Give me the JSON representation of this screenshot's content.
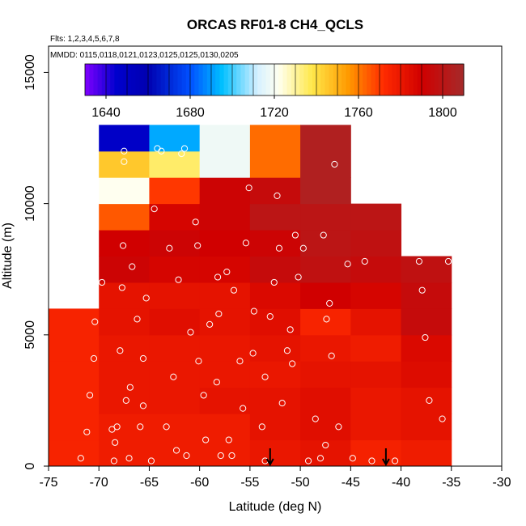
{
  "chart_data": {
    "type": "heatmap",
    "title": "ORCAS RF01-8 CH4_QCLS",
    "flights_note": "Flts: 1,2,3,4,5,6,7,8",
    "dates_note": "MMDD: 0115,0118,0121,0123,0125,0125,0130,0205",
    "xlabel": "Latitude (deg N)",
    "ylabel": "Altitude (m)",
    "xlim": [
      -75,
      -30
    ],
    "ylim": [
      0,
      16000
    ],
    "x_ticks": [
      -75,
      -70,
      -65,
      -60,
      -55,
      -50,
      -45,
      -40,
      -35,
      -30
    ],
    "y_ticks": [
      0,
      5000,
      10000,
      15000
    ],
    "colorbar": {
      "range": [
        1630,
        1810
      ],
      "ticks": [
        1640,
        1680,
        1720,
        1760,
        1800
      ],
      "color_stops": [
        {
          "v": 1630,
          "c": "#7f00ff"
        },
        {
          "v": 1645,
          "c": "#0000cd"
        },
        {
          "v": 1660,
          "c": "#0000b0"
        },
        {
          "v": 1680,
          "c": "#0050ff"
        },
        {
          "v": 1695,
          "c": "#00bfff"
        },
        {
          "v": 1712,
          "c": "#d6f0ff"
        },
        {
          "v": 1722,
          "c": "#fffff0"
        },
        {
          "v": 1738,
          "c": "#ffe84a"
        },
        {
          "v": 1755,
          "c": "#ff9a00"
        },
        {
          "v": 1772,
          "c": "#ff2a00"
        },
        {
          "v": 1790,
          "c": "#d00000"
        },
        {
          "v": 1810,
          "c": "#a52a2a"
        }
      ]
    },
    "cell_width_deg": 5,
    "cell_height_m": 1000,
    "columns": [
      {
        "x0": -75,
        "y0": 0,
        "values": [
          1775,
          1775,
          1775,
          1775,
          1775,
          1775
        ]
      },
      {
        "x0": -70,
        "y0": 0,
        "values": [
          1778,
          1778,
          1780,
          1780,
          1780,
          1782,
          1782,
          1792,
          1790,
          1765,
          1722,
          1745,
          1648
        ]
      },
      {
        "x0": -65,
        "y0": 0,
        "values": [
          1778,
          1778,
          1780,
          1780,
          1780,
          1784,
          1782,
          1788,
          1792,
          1788,
          1770,
          1735,
          1692
        ]
      },
      {
        "x0": -60,
        "y0": 0,
        "values": [
          1778,
          1778,
          1782,
          1780,
          1780,
          1782,
          1782,
          1788,
          1790,
          1792,
          1792,
          1718,
          1718
        ]
      },
      {
        "x0": -55,
        "y0": 0,
        "values": [
          1780,
          1782,
          1782,
          1780,
          1782,
          1784,
          1786,
          1795,
          1792,
          1800,
          1795,
          1762,
          1762
        ]
      },
      {
        "x0": -50,
        "y0": 0,
        "values": [
          1782,
          1784,
          1784,
          1782,
          1780,
          1775,
          1790,
          1798,
          1800,
          1800,
          1805,
          1805,
          1805
        ]
      },
      {
        "x0": -45,
        "y0": 0,
        "values": [
          1776,
          1780,
          1780,
          1782,
          1778,
          1782,
          1788,
          1795,
          1798,
          1800
        ]
      },
      {
        "x0": -40,
        "y0": 0,
        "values": [
          1778,
          1782,
          1782,
          1785,
          1786,
          1795,
          1795,
          1798
        ]
      },
      {
        "x0": -35,
        "y0": 0,
        "values": []
      }
    ],
    "column_-40_extent": [
      -40,
      -35
    ],
    "samples": [
      [
        -71.8,
        300
      ],
      [
        -71.2,
        1300
      ],
      [
        -70.9,
        2700
      ],
      [
        -70.5,
        4100
      ],
      [
        -70.4,
        5500
      ],
      [
        -69.7,
        7000
      ],
      [
        -68.7,
        1400
      ],
      [
        -68.5,
        200
      ],
      [
        -68.4,
        900
      ],
      [
        -68.2,
        1500
      ],
      [
        -67.9,
        4400
      ],
      [
        -67.7,
        6800
      ],
      [
        -67.6,
        8400
      ],
      [
        -67.5,
        11600
      ],
      [
        -67.5,
        12000
      ],
      [
        -67.3,
        2500
      ],
      [
        -67.0,
        300
      ],
      [
        -66.9,
        3000
      ],
      [
        -66.7,
        7600
      ],
      [
        -66.2,
        5600
      ],
      [
        -65.9,
        1500
      ],
      [
        -65.6,
        4100
      ],
      [
        -65.6,
        2300
      ],
      [
        -65.3,
        6400
      ],
      [
        -64.8,
        200
      ],
      [
        -64.5,
        9800
      ],
      [
        -64.2,
        12100
      ],
      [
        -63.8,
        12000
      ],
      [
        -63.3,
        1500
      ],
      [
        -63.0,
        8300
      ],
      [
        -62.6,
        3400
      ],
      [
        -62.3,
        600
      ],
      [
        -62.1,
        7100
      ],
      [
        -61.8,
        11900
      ],
      [
        -61.5,
        12100
      ],
      [
        -61.3,
        400
      ],
      [
        -60.9,
        5100
      ],
      [
        -60.4,
        9300
      ],
      [
        -60.2,
        8400
      ],
      [
        -60.1,
        4000
      ],
      [
        -59.6,
        2700
      ],
      [
        -59.4,
        1000
      ],
      [
        -59.0,
        5400
      ],
      [
        -58.3,
        3200
      ],
      [
        -58.2,
        7200
      ],
      [
        -58.1,
        5800
      ],
      [
        -57.9,
        400
      ],
      [
        -57.3,
        7400
      ],
      [
        -57.1,
        1000
      ],
      [
        -56.8,
        400
      ],
      [
        -56.6,
        6700
      ],
      [
        -56.0,
        4000
      ],
      [
        -55.7,
        2200
      ],
      [
        -55.4,
        8500
      ],
      [
        -55.1,
        10600
      ],
      [
        -54.7,
        4300
      ],
      [
        -54.6,
        5900
      ],
      [
        -53.8,
        1500
      ],
      [
        -53.5,
        200
      ],
      [
        -53.5,
        3400
      ],
      [
        -53.0,
        5700
      ],
      [
        -52.6,
        7000
      ],
      [
        -52.3,
        10300
      ],
      [
        -52.1,
        8300
      ],
      [
        -51.8,
        2400
      ],
      [
        -51.3,
        4400
      ],
      [
        -51.0,
        5200
      ],
      [
        -50.8,
        3900
      ],
      [
        -50.5,
        8800
      ],
      [
        -50.2,
        7200
      ],
      [
        -49.7,
        8300
      ],
      [
        -49.2,
        200
      ],
      [
        -48.5,
        1800
      ],
      [
        -48.0,
        300
      ],
      [
        -47.7,
        8800
      ],
      [
        -47.5,
        800
      ],
      [
        -47.4,
        5600
      ],
      [
        -47.1,
        6200
      ],
      [
        -46.9,
        4200
      ],
      [
        -46.6,
        11500
      ],
      [
        -46.2,
        1500
      ],
      [
        -45.3,
        7700
      ],
      [
        -44.8,
        300
      ],
      [
        -43.6,
        7800
      ],
      [
        -42.9,
        200
      ],
      [
        -40.6,
        200
      ],
      [
        -38.2,
        7800
      ],
      [
        -37.9,
        6700
      ],
      [
        -37.6,
        4900
      ],
      [
        -37.2,
        2500
      ],
      [
        -35.9,
        1800
      ],
      [
        -35.3,
        7800
      ]
    ],
    "arrow_markers_latitude": [
      -53,
      -41.5
    ]
  }
}
